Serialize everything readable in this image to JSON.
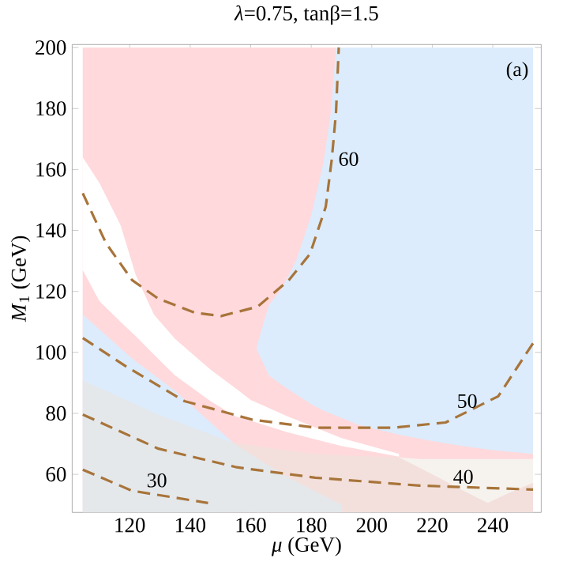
{
  "chart_data": {
    "type": "line",
    "title": "*λ*=0.75, tanβ=1.5",
    "xlabel": "*μ* (GeV)",
    "ylabel": "*M*$_{1}$ (GeV)",
    "xlim": [
      101,
      256
    ],
    "ylim": [
      47.5,
      201
    ],
    "xticks": [
      120,
      140,
      160,
      180,
      200,
      220,
      240
    ],
    "yticks": [
      60,
      80,
      100,
      120,
      140,
      160,
      180,
      200
    ],
    "series": [
      {
        "type": "area",
        "color": "#ffd9dc",
        "x": [
          104.5,
          188.2
        ],
        "values": [
          200,
          200
        ]
      },
      {
        "type": "area",
        "color": "#dcecfc",
        "x": [
          162,
          166,
          170,
          175,
          180,
          184,
          186.5,
          188.2,
          253.3
        ],
        "values": [
          102,
          115.5,
          120.5,
          130,
          145,
          162,
          179,
          200,
          200
        ]
      },
      {
        "type": "area",
        "color": "#ffd9dc",
        "x": [
          162,
          166,
          170,
          175,
          180,
          184,
          186.5,
          188.2,
          195,
          200,
          210,
          220,
          230,
          240,
          253.3
        ],
        "values": [
          101,
          92.4,
          89.5,
          86.2,
          83,
          80.9,
          79.9,
          79.2,
          76.5,
          75.1,
          72.8,
          70.9,
          69.3,
          67.9,
          66.7
        ]
      },
      {
        "type": "area",
        "color": "#ffffff",
        "x": [
          104.5,
          110,
          117,
          122,
          128,
          135,
          147,
          155,
          160,
          172,
          190,
          209
        ],
        "values": [
          164,
          155.6,
          141.7,
          125.4,
          112.4,
          104.4,
          94.1,
          88.2,
          84.4,
          79.1,
          71.9,
          66.7
        ]
      },
      {
        "type": "area",
        "color": "#ffd9dc",
        "x": [
          104.5,
          110,
          117,
          122,
          128,
          135,
          147,
          155,
          160,
          172,
          190,
          209
        ],
        "values": [
          127,
          116.8,
          110,
          105.3,
          99.3,
          92.4,
          83.8,
          79,
          77.6,
          73.8,
          69.3,
          65.8
        ]
      },
      {
        "type": "area",
        "color": "#dcecfc",
        "x": [
          104.5,
          121,
          135,
          154
        ],
        "values": [
          112.4,
          97.8,
          87.4,
          70.5
        ]
      },
      {
        "type": "area",
        "color": "#f6f3ef",
        "x": [
          209,
          215.8,
          253.3
        ],
        "values": [
          65.6,
          65,
          65
        ]
      },
      {
        "type": "area",
        "color": "#f3e0dc",
        "x": [
          153.7,
          171,
          181.3,
          190,
          209,
          220,
          230,
          238.3,
          245,
          253.3
        ],
        "values": [
          70.5,
          67.9,
          66.7,
          66.2,
          65.6,
          60,
          54.8,
          50.6,
          53.7,
          57.2
        ]
      },
      {
        "type": "area",
        "color": "#e4e8eb",
        "x": [
          104.5,
          129.5,
          153.7,
          171,
          190
        ],
        "values": [
          90.8,
          79.6,
          70.5,
          59.7,
          50
        ]
      },
      {
        "name": "60",
        "color": "#a8743a",
        "line_style": "dashed",
        "x": [
          104.5,
          112.2,
          120.8,
          129.5,
          141.6,
          150.2,
          162.3,
          172.6,
          179.6,
          184.8,
          186.8,
          188.2,
          189.1
        ],
        "values": [
          152.2,
          135.8,
          123.7,
          117.6,
          113,
          111.9,
          115,
          123.7,
          132.3,
          147.8,
          163.4,
          178.9,
          200
        ]
      },
      {
        "name": "50",
        "color": "#a8743a",
        "line_style": "dashed",
        "x": [
          104.5,
          119.1,
          138.1,
          160.6,
          181.3,
          207.2,
          224.4,
          241.8,
          253.3
        ],
        "values": [
          104.7,
          95.2,
          84,
          77.9,
          75.3,
          75.3,
          77,
          85.6,
          103
        ]
      },
      {
        "name": "40",
        "color": "#a8743a",
        "line_style": "dashed",
        "x": [
          104.5,
          129.5,
          155.4,
          181.3,
          215.8,
          253.3
        ],
        "values": [
          79.6,
          68.4,
          62.3,
          58.9,
          56.3,
          55
        ]
      },
      {
        "name": "30",
        "color": "#a8743a",
        "line_style": "dashed",
        "x": [
          104.5,
          120.8,
          145.9
        ],
        "values": [
          61.5,
          54.6,
          50.6
        ]
      }
    ],
    "annotations": [
      "(a)"
    ]
  }
}
